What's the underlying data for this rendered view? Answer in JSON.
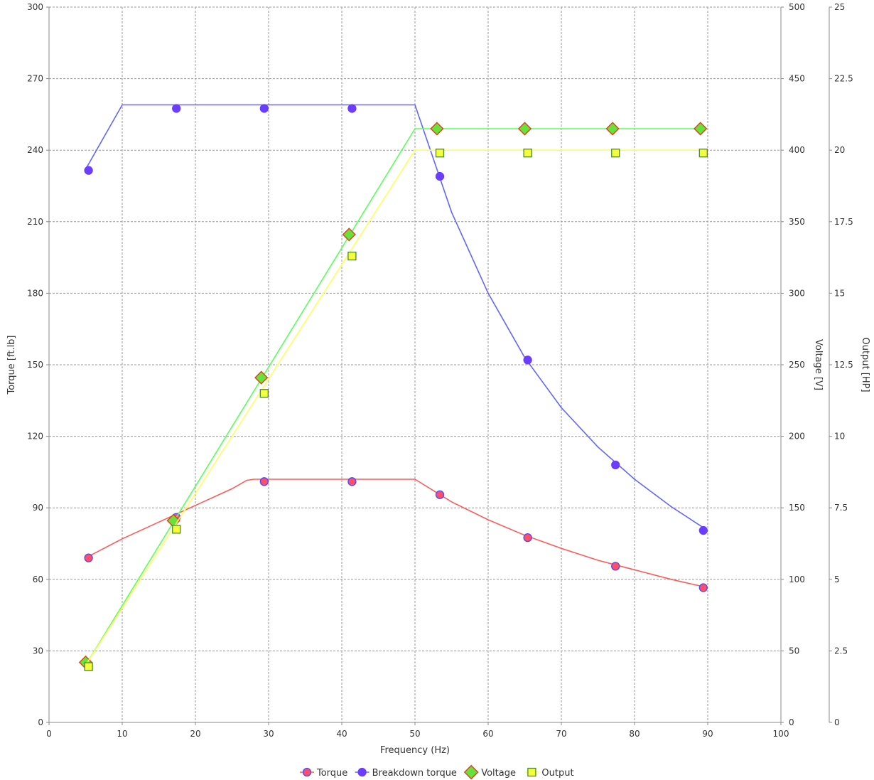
{
  "chart_data": {
    "type": "line",
    "xlabel": "Frequency (Hz)",
    "xlim": [
      0,
      100
    ],
    "xticks": [
      0,
      10,
      20,
      30,
      40,
      50,
      60,
      70,
      80,
      90,
      100
    ],
    "grid": true,
    "legend_position": "bottom",
    "axes": {
      "torque": {
        "label": "Torque [ft.lb]",
        "lim": [
          0,
          300
        ],
        "ticks": [
          0,
          30,
          60,
          90,
          120,
          150,
          180,
          210,
          240,
          270,
          300
        ],
        "side": "left"
      },
      "voltage": {
        "label": "Voltage [V]",
        "lim": [
          0,
          500
        ],
        "ticks": [
          0,
          50,
          100,
          150,
          200,
          250,
          300,
          350,
          400,
          450,
          500
        ],
        "side": "right"
      },
      "output": {
        "label": "Output [HP]",
        "lim": [
          0,
          25
        ],
        "ticks": [
          "0",
          "2.5",
          "5",
          "7.5",
          "10",
          "12.5",
          "15",
          "17.5",
          "20",
          "22.5",
          "25"
        ],
        "side": "right-outer"
      }
    },
    "series": [
      {
        "name": "Torque",
        "axis": "torque",
        "color": "#ff5a5a",
        "marker": "circle",
        "marker_fill": "#ff4d6a",
        "marker_stroke": "#4a4aff",
        "line": [
          [
            5,
            69
          ],
          [
            10,
            77
          ],
          [
            15,
            84
          ],
          [
            20,
            91
          ],
          [
            25,
            98
          ],
          [
            27,
            101.5
          ],
          [
            28,
            102
          ],
          [
            50,
            102
          ],
          [
            55,
            92.5
          ],
          [
            60,
            85
          ],
          [
            65,
            78.5
          ],
          [
            70,
            73
          ],
          [
            75,
            68
          ],
          [
            80,
            64
          ],
          [
            85,
            60
          ],
          [
            90,
            56.5
          ]
        ],
        "points": [
          [
            5.4,
            69
          ],
          [
            17.4,
            86
          ],
          [
            29.4,
            101
          ],
          [
            41.4,
            101
          ],
          [
            53.4,
            95.5
          ],
          [
            65.4,
            77.5
          ],
          [
            77.4,
            65.5
          ],
          [
            89.4,
            56.5
          ]
        ]
      },
      {
        "name": "Breakdown torque",
        "axis": "torque",
        "color": "#6464ff",
        "marker": "circle",
        "marker_fill": "#6a3dff",
        "marker_stroke": "#6a3dff",
        "line": [
          [
            5,
            232
          ],
          [
            10,
            259
          ],
          [
            50,
            259
          ],
          [
            55,
            214
          ],
          [
            60,
            180
          ],
          [
            65,
            153
          ],
          [
            70,
            132
          ],
          [
            75,
            115.5
          ],
          [
            80,
            102
          ],
          [
            85,
            90.5
          ],
          [
            90,
            80.5
          ]
        ],
        "points": [
          [
            5.4,
            231.5
          ],
          [
            17.4,
            257.5
          ],
          [
            29.4,
            257.5
          ],
          [
            41.4,
            257.5
          ],
          [
            53.4,
            229
          ],
          [
            65.4,
            152
          ],
          [
            77.4,
            108
          ],
          [
            89.4,
            80.5
          ]
        ]
      },
      {
        "name": "Voltage",
        "axis": "voltage",
        "color": "#5cff5c",
        "marker": "diamond",
        "marker_fill": "#66e23a",
        "marker_stroke": "#e0401a",
        "line": [
          [
            5,
            40
          ],
          [
            50,
            415
          ],
          [
            90,
            415
          ]
        ],
        "points": [
          [
            5,
            42
          ],
          [
            17,
            141
          ],
          [
            29,
            241
          ],
          [
            41,
            341
          ],
          [
            53,
            415
          ],
          [
            65,
            415
          ],
          [
            77,
            415
          ],
          [
            89,
            415
          ]
        ]
      },
      {
        "name": "Output",
        "axis": "output",
        "color": "#ffff5c",
        "marker": "square",
        "marker_fill": "#f4ff3a",
        "marker_stroke": "#4a8a2a",
        "line": [
          [
            5,
            2
          ],
          [
            50,
            20
          ],
          [
            90,
            20
          ]
        ],
        "points": [
          [
            5.4,
            1.95
          ],
          [
            17.4,
            6.75
          ],
          [
            29.4,
            11.5
          ],
          [
            41.4,
            16.3
          ],
          [
            53.4,
            19.9
          ],
          [
            65.4,
            19.9
          ],
          [
            77.4,
            19.9
          ],
          [
            89.4,
            19.9
          ]
        ]
      }
    ]
  }
}
